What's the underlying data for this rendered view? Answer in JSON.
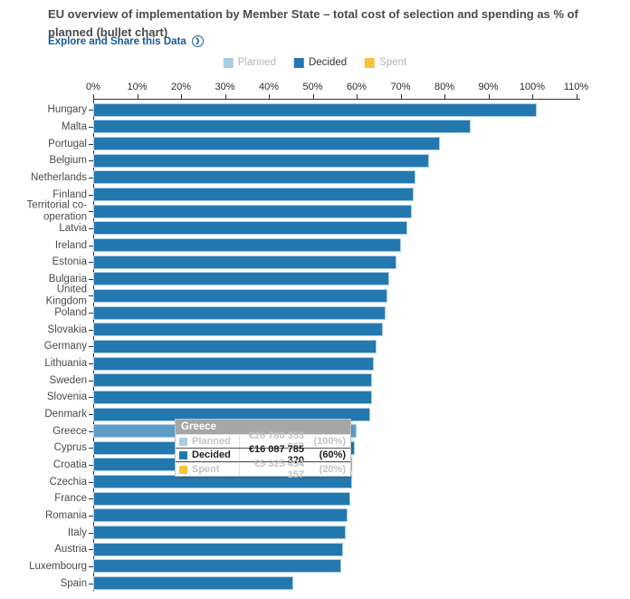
{
  "header": {
    "title": "EU overview of implementation by Member State – total cost of selection and spending as % of planned (bullet chart)",
    "link_label": "Explore and Share this Data",
    "link_icon": "❯"
  },
  "legend": {
    "items": [
      {
        "label": "Planned",
        "color": "#aacde4",
        "muted": true
      },
      {
        "label": "Decided",
        "color": "#2478b0",
        "muted": false
      },
      {
        "label": "Spent",
        "color": "#f9c23c",
        "muted": true
      }
    ]
  },
  "chart_data": {
    "type": "bar",
    "orientation": "horizontal",
    "series_name": "Decided",
    "xlim": [
      0,
      110
    ],
    "tick_labels": [
      "0%",
      "10%",
      "20%",
      "30%",
      "40%",
      "50%",
      "60%",
      "70%",
      "80%",
      "90%",
      "100%",
      "110%"
    ],
    "categories": [
      "Hungary",
      "Malta",
      "Portugal",
      "Belgium",
      "Netherlands",
      "Finland",
      "Territorial co-operation",
      "Latvia",
      "Ireland",
      "Estonia",
      "Bulgaria",
      "United Kingdom",
      "Poland",
      "Slovakia",
      "Germany",
      "Lithuania",
      "Sweden",
      "Slovenia",
      "Denmark",
      "Greece",
      "Cyprus",
      "Croatia",
      "Czechia",
      "France",
      "Romania",
      "Italy",
      "Austria",
      "Luxembourg",
      "Spain"
    ],
    "values": [
      101,
      86,
      79,
      76.5,
      73.5,
      73,
      72.5,
      71.5,
      70,
      69,
      67.5,
      67,
      66.5,
      66,
      64.5,
      64,
      63.5,
      63.5,
      63,
      60,
      59.5,
      59,
      59,
      58.5,
      58,
      57.5,
      57,
      56.5,
      45.5
    ],
    "bar_color": "#2478b0",
    "bar_border_color": "#aacde4",
    "highlighted_category": "Greece",
    "highlight_color": "#5d9dc8",
    "grid": false,
    "legend_position": "top"
  },
  "tooltip": {
    "title": "Greece",
    "rows": [
      {
        "label": "Planned",
        "swatch": "#aacde4",
        "value": "€26 780 353 657",
        "pct": "(100%)",
        "emphasis": false
      },
      {
        "label": "Decided",
        "swatch": "#2478b0",
        "value": "€16 087 785 320",
        "pct": "(60%)",
        "emphasis": true
      },
      {
        "label": "Spent",
        "swatch": "#f9c23c",
        "value": "€5 325 494 157",
        "pct": "(20%)",
        "emphasis": false
      }
    ]
  }
}
